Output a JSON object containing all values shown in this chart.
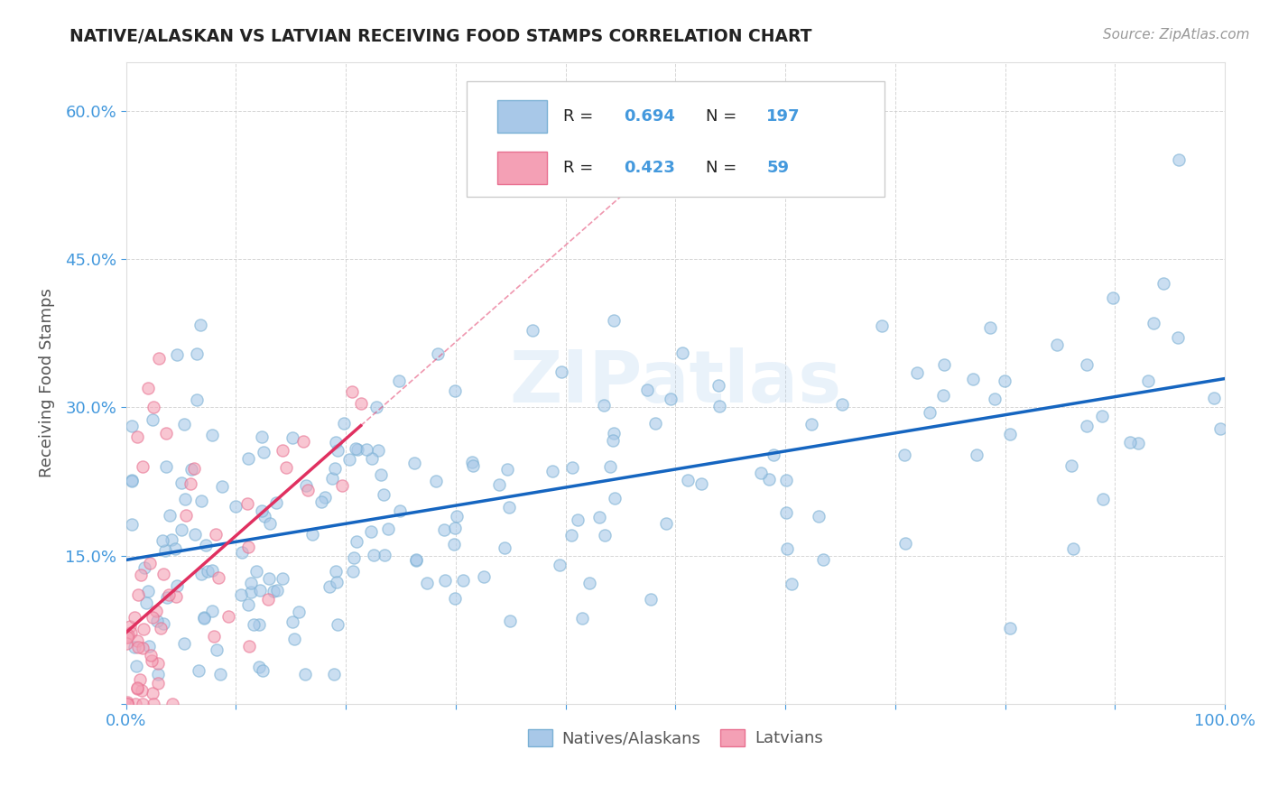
{
  "title": "NATIVE/ALASKAN VS LATVIAN RECEIVING FOOD STAMPS CORRELATION CHART",
  "source_text": "Source: ZipAtlas.com",
  "ylabel": "Receiving Food Stamps",
  "xlim": [
    0,
    1.0
  ],
  "ylim": [
    0,
    0.65
  ],
  "blue_R": 0.694,
  "blue_N": 197,
  "pink_R": 0.423,
  "pink_N": 59,
  "blue_color": "#a8c8e8",
  "pink_color": "#f4a0b5",
  "blue_edge_color": "#7ab0d4",
  "pink_edge_color": "#e87090",
  "blue_line_color": "#1565C0",
  "pink_line_color": "#e03060",
  "background_color": "#ffffff",
  "grid_color": "#cccccc",
  "title_color": "#333333",
  "axis_label_color": "#555555",
  "tick_color": "#4499dd",
  "legend_label_blue": "Natives/Alaskans",
  "legend_label_pink": "Latvians"
}
